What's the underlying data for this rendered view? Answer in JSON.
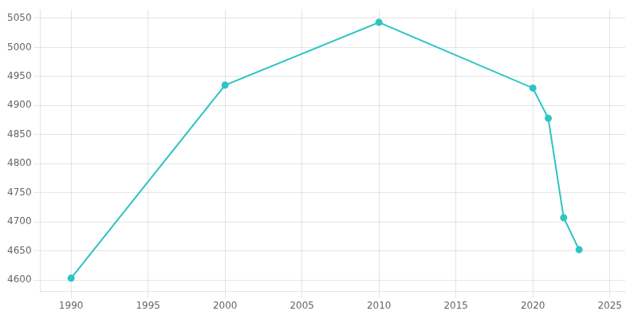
{
  "chart_data": {
    "type": "line",
    "x": [
      1990,
      2000,
      2010,
      2020,
      2021,
      2022,
      2023
    ],
    "values": [
      4603,
      4935,
      5043,
      4930,
      4878,
      4707,
      4652
    ],
    "color": "#2EC4C4",
    "marker": "circle",
    "xlim": [
      1988,
      2026
    ],
    "ylim": [
      4580,
      5065
    ],
    "xticks": [
      1990,
      1995,
      2000,
      2005,
      2010,
      2015,
      2020,
      2025
    ],
    "yticks": [
      4600,
      4650,
      4700,
      4750,
      4800,
      4850,
      4900,
      4950,
      5000,
      5050
    ],
    "grid": true
  }
}
